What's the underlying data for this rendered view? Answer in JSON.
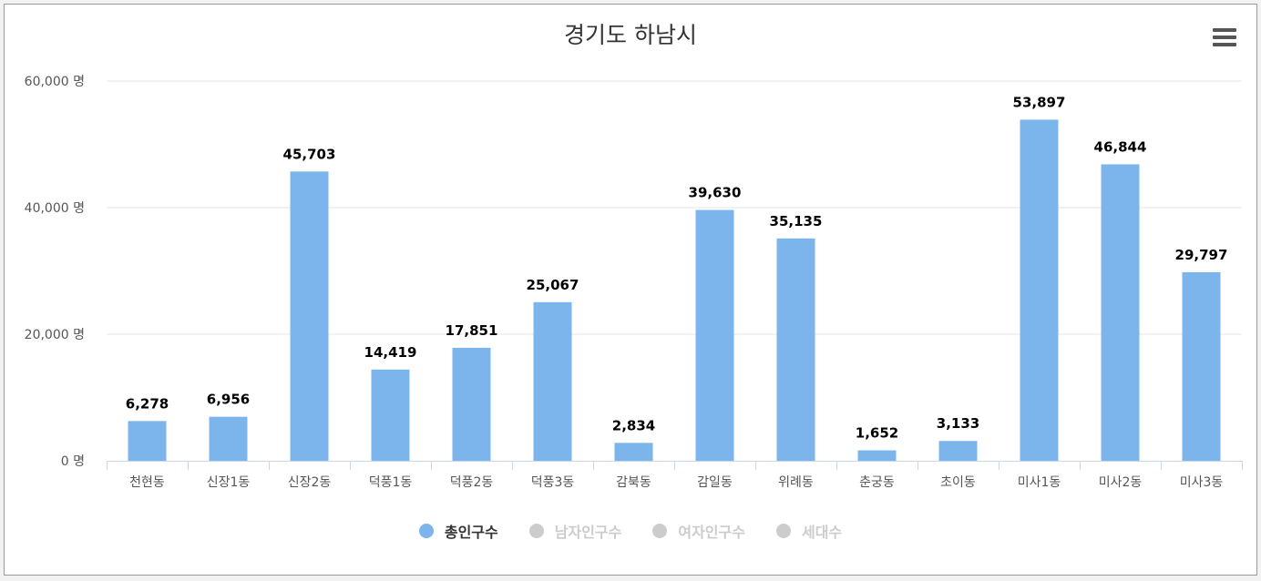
{
  "chart_data": {
    "type": "bar",
    "title": "경기도 하남시",
    "categories": [
      "천현동",
      "신장1동",
      "신장2동",
      "덕풍1동",
      "덕풍2동",
      "덕풍3동",
      "감북동",
      "감일동",
      "위례동",
      "춘궁동",
      "초이동",
      "미사1동",
      "미사2동",
      "미사3동"
    ],
    "series": [
      {
        "name": "총인구수",
        "values": [
          6278,
          6956,
          45703,
          14419,
          17851,
          25067,
          2834,
          39630,
          35135,
          1652,
          3133,
          53897,
          46844,
          29797
        ],
        "visible": true
      }
    ],
    "value_labels": [
      "6,278",
      "6,956",
      "45,703",
      "14,419",
      "17,851",
      "25,067",
      "2,834",
      "39,630",
      "35,135",
      "1,652",
      "3,133",
      "53,897",
      "46,844",
      "29,797"
    ],
    "yticks": [
      {
        "value": 0,
        "label": "0 명"
      },
      {
        "value": 20000,
        "label": "20,000 명"
      },
      {
        "value": 40000,
        "label": "40,000 명"
      },
      {
        "value": 60000,
        "label": "60,000 명"
      }
    ],
    "ylim": [
      0,
      60000
    ],
    "grid": true,
    "legend_position": "bottom-center",
    "bar_color": "#7cb5ec"
  },
  "legend": [
    {
      "label": "총인구수",
      "active": true,
      "color": "#7cb5ec"
    },
    {
      "label": "남자인구수",
      "active": false,
      "color": "#cccccc"
    },
    {
      "label": "여자인구수",
      "active": false,
      "color": "#cccccc"
    },
    {
      "label": "세대수",
      "active": false,
      "color": "#cccccc"
    }
  ],
  "menu_icon": "hamburger-menu-icon"
}
